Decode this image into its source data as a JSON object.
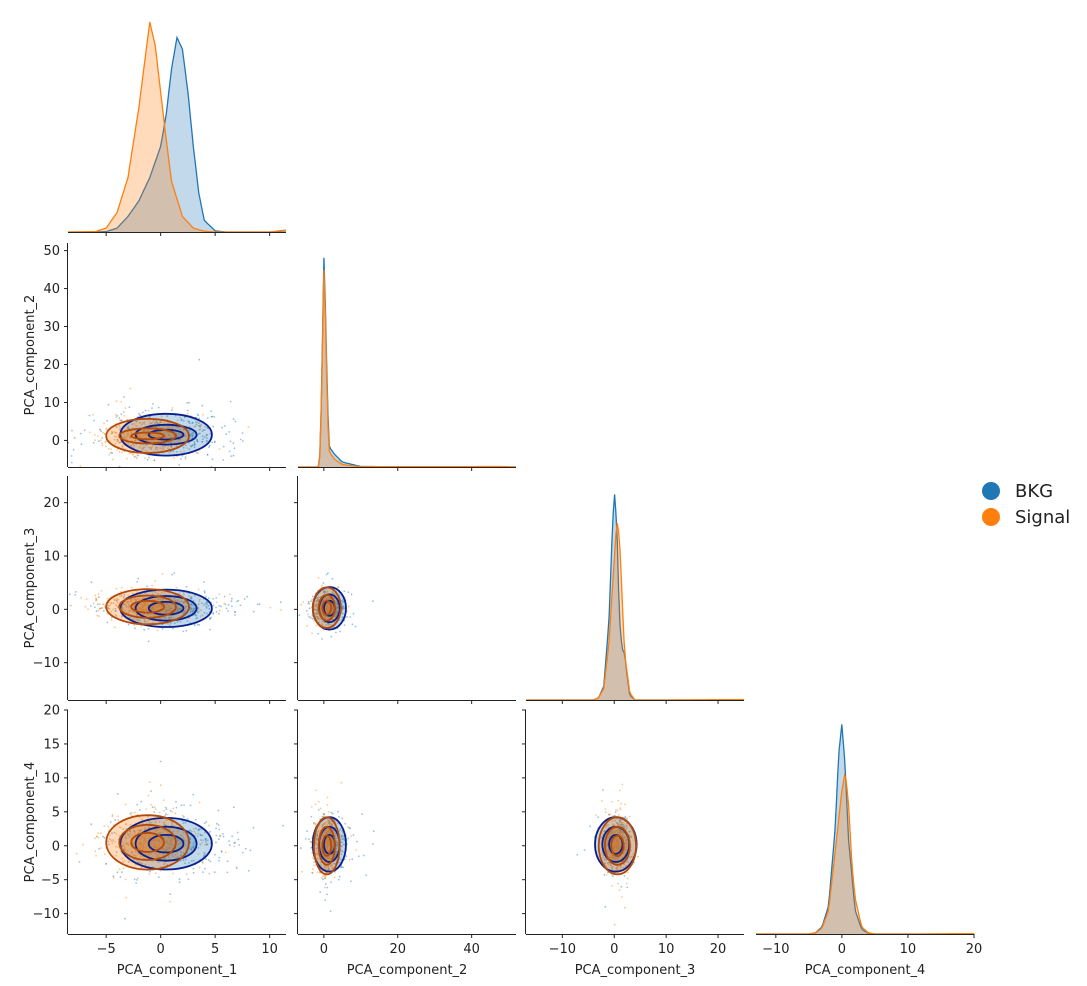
{
  "chart_data": {
    "type": "pairplot",
    "variables": [
      "PCA_component_1",
      "PCA_component_2",
      "PCA_component_3",
      "PCA_component_4"
    ],
    "corner": true,
    "diagonal": "kde",
    "offdiagonal": "scatter + kde contours",
    "legend": {
      "placement": "right",
      "entries": [
        {
          "label": "BKG",
          "color": "#1f77b4"
        },
        {
          "label": "Signal",
          "color": "#ff7f0e"
        }
      ]
    },
    "contour_colors": {
      "BKG": "#0a1f8f",
      "Signal": "#b34a0a"
    },
    "axes": {
      "PCA_component_1": {
        "range": [
          -8.5,
          11.5
        ],
        "ticks": [
          -5,
          0,
          5,
          10
        ],
        "tick_labels": [
          "−5",
          "0",
          "5",
          "10"
        ]
      },
      "PCA_component_2": {
        "range": [
          -7,
          52
        ],
        "ticks": [
          0,
          10,
          20,
          30,
          40,
          50
        ],
        "tick_labels": [
          "0",
          "10",
          "20",
          "30",
          "40",
          "50"
        ],
        "x_ticks": [
          0,
          20,
          40
        ],
        "x_tick_labels": [
          "0",
          "20",
          "40"
        ]
      },
      "PCA_component_3": {
        "range": [
          -17,
          25
        ],
        "ticks": [
          -10,
          0,
          10,
          20
        ],
        "tick_labels": [
          "−10",
          "0",
          "10",
          "20"
        ]
      },
      "PCA_component_4": {
        "range": [
          -13,
          20
        ],
        "ticks": [
          -10,
          -5,
          0,
          5,
          10,
          15,
          20
        ],
        "tick_labels": [
          "−10",
          "−5",
          "0",
          "5",
          "10",
          "15",
          "20"
        ],
        "x_ticks": [
          -10,
          0,
          10,
          20
        ],
        "x_tick_labels": [
          "−10",
          "0",
          "10",
          "20"
        ]
      }
    },
    "diagonal_kde": [
      {
        "variable": "PCA_component_1",
        "series": [
          {
            "name": "BKG",
            "x": [
              -8.5,
              -6,
              -5,
              -4,
              -3,
              -2,
              -1,
              0,
              0.5,
              1,
              1.5,
              2,
              2.5,
              3,
              3.5,
              4,
              5,
              6,
              11.5
            ],
            "density": [
              0,
              0,
              0.001,
              0.01,
              0.04,
              0.08,
              0.14,
              0.22,
              0.3,
              0.42,
              0.5,
              0.47,
              0.36,
              0.22,
              0.1,
              0.03,
              0.003,
              0,
              0
            ]
          },
          {
            "name": "Signal",
            "x": [
              -8.5,
              -6,
              -5,
              -4,
              -3,
              -2,
              -1.5,
              -1,
              -0.5,
              0,
              0.5,
              1,
              2,
              3,
              4,
              5,
              6,
              10,
              11.5
            ],
            "density": [
              0,
              0.001,
              0.01,
              0.05,
              0.14,
              0.32,
              0.43,
              0.54,
              0.48,
              0.36,
              0.24,
              0.13,
              0.04,
              0.01,
              0.002,
              0,
              0,
              0,
              0.005
            ]
          }
        ]
      },
      {
        "variable": "PCA_component_2",
        "series": [
          {
            "name": "BKG",
            "x": [
              -7,
              -1.5,
              -1,
              -0.5,
              0,
              0.5,
              1,
              1.5,
              3,
              5,
              10,
              52
            ],
            "density": [
              0,
              0,
              0.06,
              0.4,
              0.85,
              0.6,
              0.25,
              0.08,
              0.05,
              0.02,
              0.002,
              0
            ]
          },
          {
            "name": "Signal",
            "x": [
              -7,
              -1.5,
              -1,
              -0.5,
              0,
              0.5,
              1,
              1.5,
              3,
              5,
              10,
              48,
              52
            ],
            "density": [
              0,
              0,
              0.05,
              0.38,
              0.8,
              0.56,
              0.2,
              0.06,
              0.03,
              0.01,
              0.001,
              0.002,
              0
            ]
          }
        ]
      },
      {
        "variable": "PCA_component_3",
        "series": [
          {
            "name": "BKG",
            "x": [
              -17,
              -4,
              -3,
              -2,
              -1,
              -0.5,
              0,
              0.5,
              1,
              1.5,
              2,
              2.5,
              3,
              4,
              25
            ],
            "density": [
              0,
              0,
              0.01,
              0.06,
              0.35,
              0.65,
              0.9,
              0.75,
              0.35,
              0.22,
              0.2,
              0.1,
              0.02,
              0,
              0
            ]
          },
          {
            "name": "Signal",
            "x": [
              -17,
              -4,
              -3,
              -2,
              -1,
              0,
              0.5,
              1,
              1.5,
              2,
              3,
              4,
              10,
              25
            ],
            "density": [
              0,
              0,
              0.01,
              0.05,
              0.25,
              0.6,
              0.77,
              0.7,
              0.45,
              0.2,
              0.03,
              0,
              0,
              0.002
            ]
          }
        ]
      },
      {
        "variable": "PCA_component_4",
        "series": [
          {
            "name": "BKG",
            "x": [
              -13,
              -5,
              -4,
              -3,
              -2,
              -1,
              -0.5,
              0,
              0.5,
              1,
              2,
              3,
              4,
              5,
              20
            ],
            "density": [
              0,
              0,
              0.005,
              0.03,
              0.12,
              0.45,
              0.75,
              0.88,
              0.7,
              0.4,
              0.1,
              0.02,
              0.003,
              0,
              0
            ]
          },
          {
            "name": "Signal",
            "x": [
              -13,
              -5,
              -4,
              -3,
              -2,
              -1,
              0,
              0.5,
              1,
              1.5,
              2,
              3,
              4,
              5,
              12,
              20
            ],
            "density": [
              0,
              0,
              0.004,
              0.025,
              0.1,
              0.35,
              0.6,
              0.68,
              0.55,
              0.3,
              0.15,
              0.03,
              0.005,
              0,
              0,
              0.002
            ]
          }
        ]
      }
    ],
    "offdiagonal_panels": [
      {
        "x": "PCA_component_1",
        "y": "PCA_component_2",
        "BKG": {
          "center": [
            0.5,
            1.5
          ],
          "spread": [
            2.8,
            3.2
          ],
          "contours": [
            [
              4.2,
              5.5
            ],
            [
              2.8,
              2.6
            ],
            [
              1.6,
              1.3
            ]
          ]
        },
        "Signal": {
          "center": [
            -1.2,
            1.2
          ],
          "spread": [
            2.3,
            2.8
          ],
          "contours": [
            [
              3.8,
              4.5
            ],
            [
              2.6,
              2.0
            ],
            [
              1.5,
              0.9
            ]
          ]
        }
      },
      {
        "x": "PCA_component_1",
        "y": "PCA_component_3",
        "BKG": {
          "center": [
            0.5,
            0.2
          ],
          "spread": [
            2.8,
            1.5
          ],
          "contours": [
            [
              4.2,
              3.5
            ],
            [
              2.8,
              2.3
            ],
            [
              1.6,
              1.2
            ]
          ]
        },
        "Signal": {
          "center": [
            -1.2,
            0.5
          ],
          "spread": [
            2.3,
            1.4
          ],
          "contours": [
            [
              3.8,
              3.3
            ],
            [
              2.6,
              2.1
            ],
            [
              1.5,
              1.1
            ]
          ]
        }
      },
      {
        "x": "PCA_component_2",
        "y": "PCA_component_3",
        "BKG": {
          "center": [
            1.5,
            0.2
          ],
          "spread": [
            2.2,
            1.5
          ],
          "contours": [
            [
              4.5,
              4.0
            ],
            [
              2.8,
              2.6
            ],
            [
              1.5,
              1.4
            ]
          ]
        },
        "Signal": {
          "center": [
            0.8,
            0.3
          ],
          "spread": [
            1.8,
            1.4
          ],
          "contours": [
            [
              3.8,
              3.8
            ],
            [
              2.2,
              2.4
            ],
            [
              1.2,
              1.3
            ]
          ]
        }
      },
      {
        "x": "PCA_component_1",
        "y": "PCA_component_4",
        "BKG": {
          "center": [
            0.5,
            0.3
          ],
          "spread": [
            2.8,
            2.2
          ],
          "contours": [
            [
              4.2,
              3.8
            ],
            [
              2.8,
              2.5
            ],
            [
              1.6,
              1.3
            ]
          ]
        },
        "Signal": {
          "center": [
            -1.2,
            0.5
          ],
          "spread": [
            2.3,
            2.0
          ],
          "contours": [
            [
              3.8,
              4.0
            ],
            [
              2.6,
              2.6
            ],
            [
              1.5,
              1.4
            ]
          ]
        }
      },
      {
        "x": "PCA_component_2",
        "y": "PCA_component_4",
        "BKG": {
          "center": [
            1.5,
            0.2
          ],
          "spread": [
            2.2,
            2.0
          ],
          "contours": [
            [
              4.5,
              4.0
            ],
            [
              2.8,
              2.6
            ],
            [
              1.5,
              1.4
            ]
          ]
        },
        "Signal": {
          "center": [
            0.8,
            0.0
          ],
          "spread": [
            1.8,
            2.2
          ],
          "contours": [
            [
              3.5,
              4.2
            ],
            [
              2.2,
              2.8
            ],
            [
              1.2,
              1.5
            ]
          ]
        }
      },
      {
        "x": "PCA_component_3",
        "y": "PCA_component_4",
        "BKG": {
          "center": [
            0.3,
            0.2
          ],
          "spread": [
            1.3,
            2.0
          ],
          "contours": [
            [
              4.0,
              4.0
            ],
            [
              2.6,
              2.6
            ],
            [
              1.3,
              1.4
            ]
          ]
        },
        "Signal": {
          "center": [
            0.6,
            0.0
          ],
          "spread": [
            1.2,
            2.2
          ],
          "contours": [
            [
              3.6,
              4.2
            ],
            [
              2.4,
              2.8
            ],
            [
              1.2,
              1.5
            ]
          ]
        }
      }
    ]
  }
}
